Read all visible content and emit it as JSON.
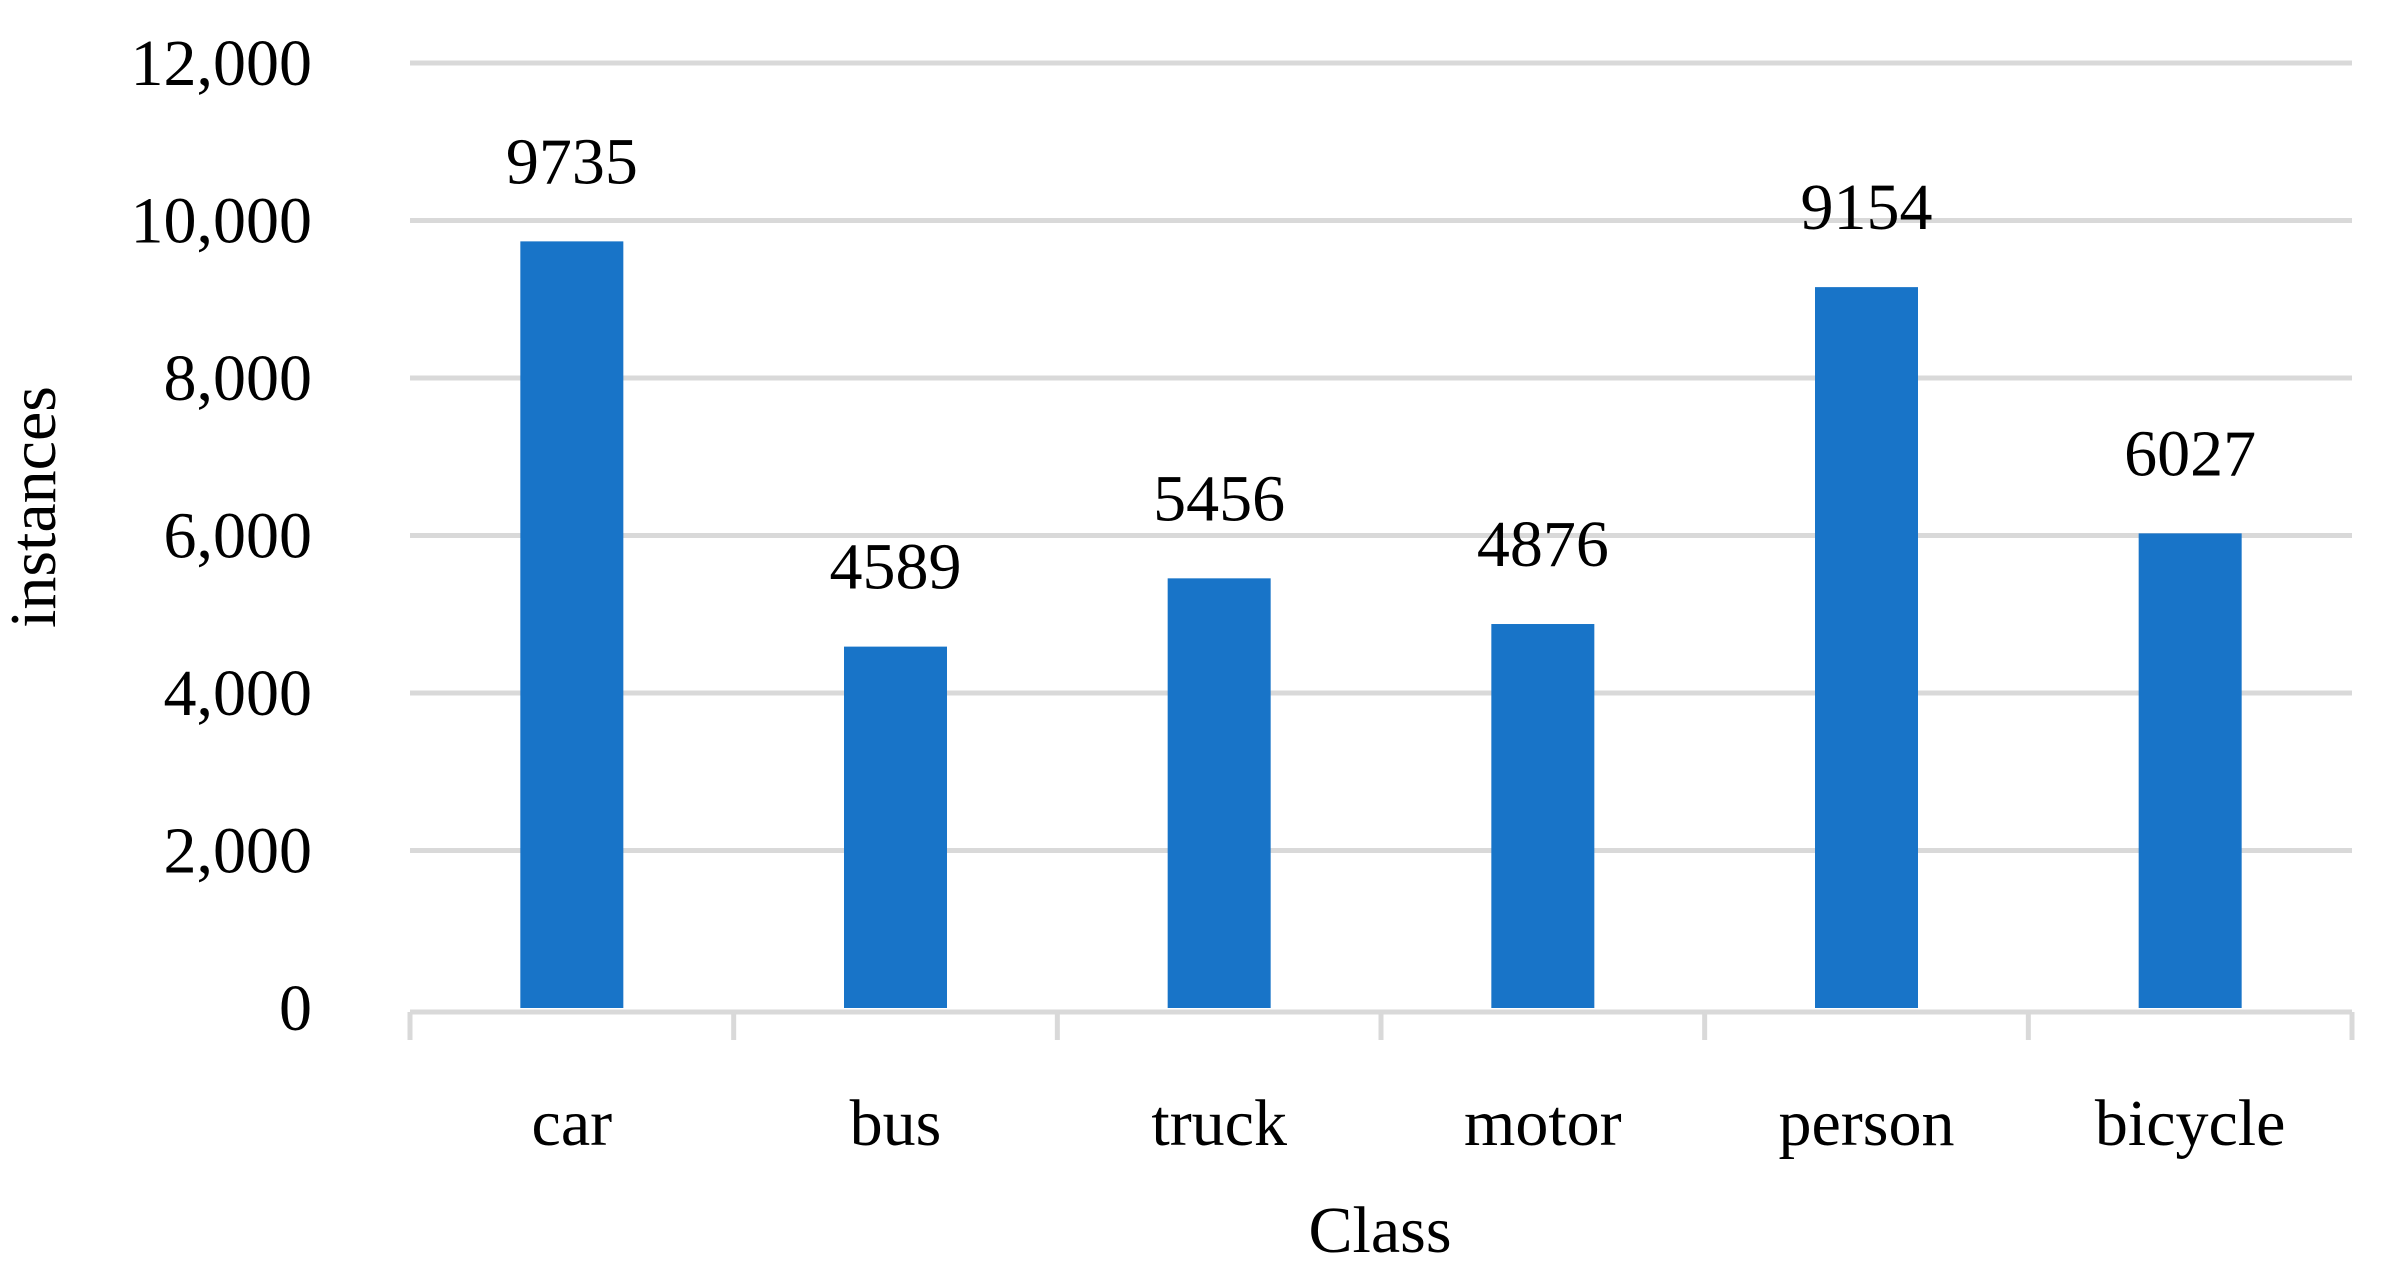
{
  "chart_data": {
    "type": "bar",
    "title": "",
    "xlabel": "Class",
    "ylabel": "instances",
    "categories": [
      "car",
      "bus",
      "truck",
      "motor",
      "person",
      "bicycle"
    ],
    "values": [
      9735,
      4589,
      5456,
      4876,
      9154,
      6027
    ],
    "data_labels": [
      "9735",
      "4589",
      "5456",
      "4876",
      "9154",
      "6027"
    ],
    "ylim": [
      0,
      12000
    ],
    "yticks": [
      0,
      2000,
      4000,
      6000,
      8000,
      10000,
      12000
    ],
    "ytick_labels": [
      "0",
      "2,000",
      "4,000",
      "6,000",
      "8,000",
      "10,000",
      "12,000"
    ],
    "grid": true,
    "legend": "none",
    "colors": {
      "bar": "#1874C8",
      "grid": "#D9D9D9",
      "axis": "#D9D9D9",
      "text": "#000000"
    }
  }
}
